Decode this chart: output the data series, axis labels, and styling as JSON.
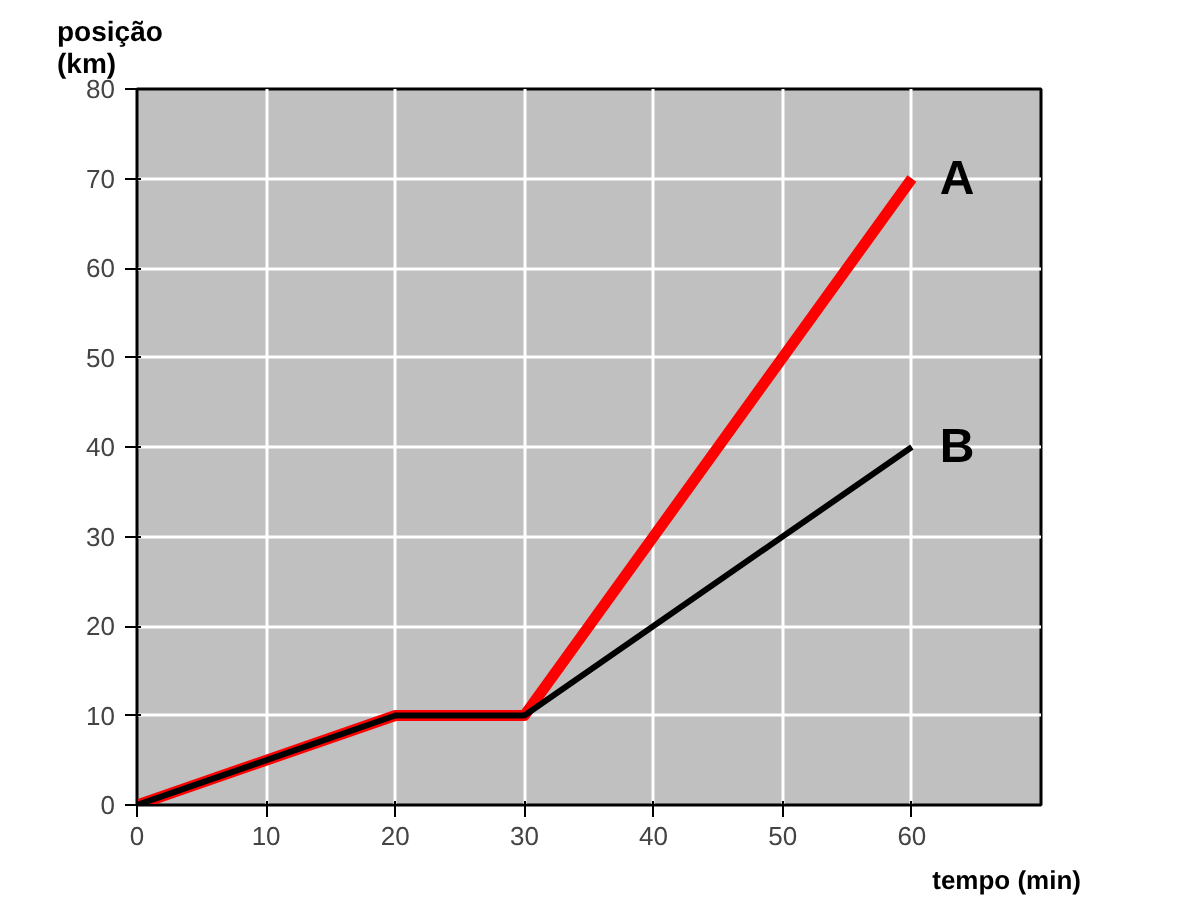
{
  "chart_data": {
    "type": "line",
    "xlabel": "tempo (min)",
    "ylabel": "posição (km)",
    "x": [
      0,
      20,
      30,
      60
    ],
    "series": [
      {
        "name": "A",
        "color": "#ff0000",
        "values": [
          0,
          10,
          10,
          70
        ]
      },
      {
        "name": "B",
        "color": "#000000",
        "values": [
          0,
          10,
          10,
          40
        ]
      }
    ],
    "xlim": [
      0,
      70
    ],
    "xticks": [
      0,
      10,
      20,
      30,
      40,
      50,
      60
    ],
    "ylim": [
      0,
      80
    ],
    "yticks": [
      0,
      10,
      20,
      30,
      40,
      50,
      60,
      70,
      80
    ],
    "grid": true,
    "legend": false,
    "marker": "none",
    "line_style": "solid"
  }
}
